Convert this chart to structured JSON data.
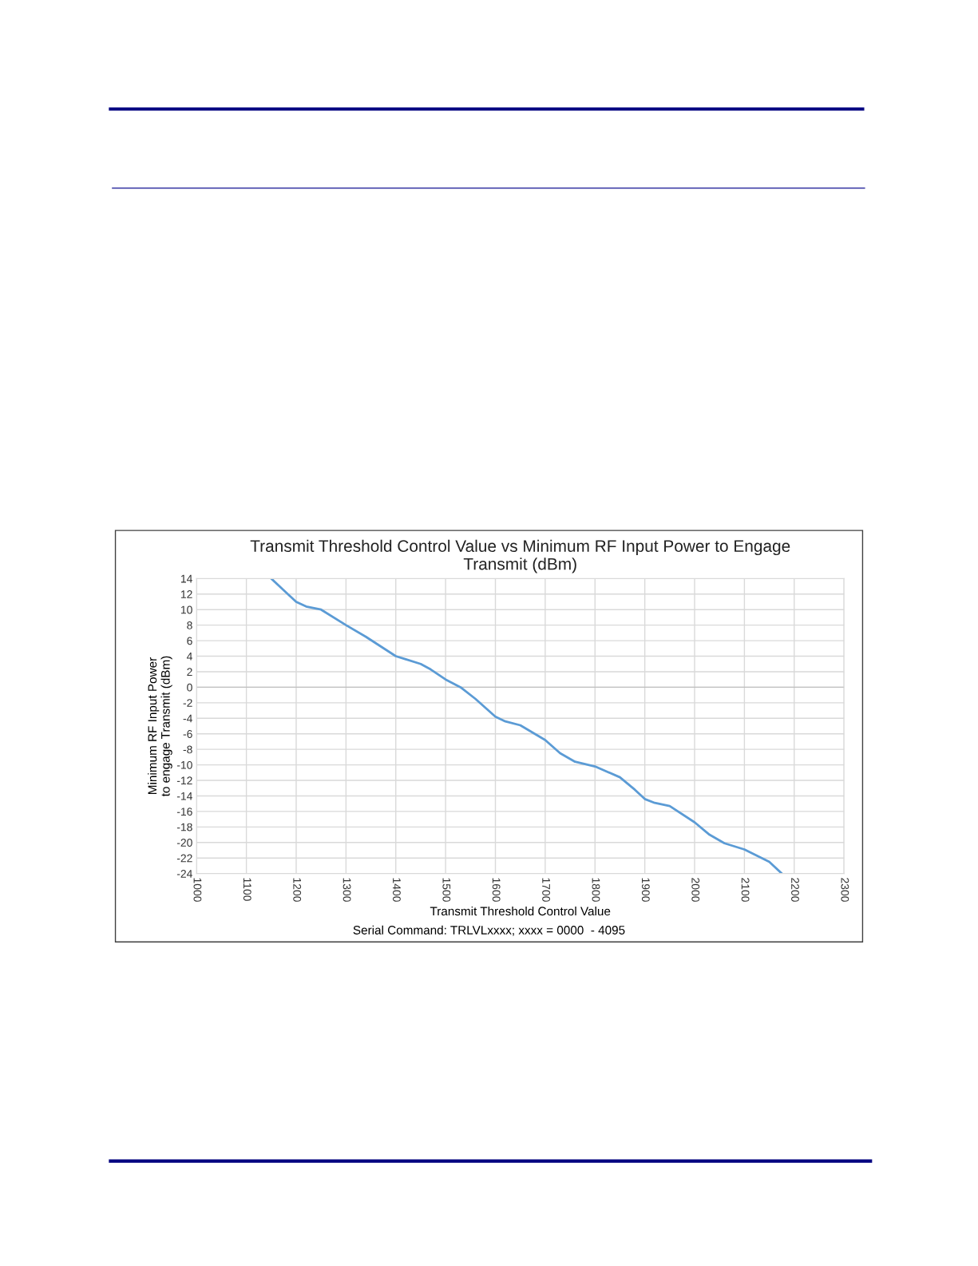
{
  "chart_data": {
    "type": "line",
    "title": "Transmit Threshold Control Value vs Minimum RF Input Power to Engage\nTransmit (dBm)",
    "xlabel": "Transmit Threshold Control Value",
    "ylabel": "Minimum RF Input Power\nto engage Transmit (dBm)",
    "annotations": [
      "Serial Command: TRLVLxxxx; xxxx = 0000  - 4095"
    ],
    "series": [
      {
        "color": "#5b9bd5",
        "x": [
          1150,
          1175,
          1200,
          1220,
          1250,
          1300,
          1340,
          1400,
          1420,
          1450,
          1470,
          1500,
          1530,
          1560,
          1600,
          1620,
          1650,
          1700,
          1730,
          1760,
          1800,
          1850,
          1880,
          1900,
          1920,
          1950,
          2000,
          2030,
          2060,
          2100,
          2150,
          2175
        ],
        "values": [
          14,
          12.5,
          11,
          10.4,
          10,
          8,
          6.5,
          4,
          3.6,
          3,
          2.3,
          1,
          0,
          -1.5,
          -3.8,
          -4.4,
          -4.9,
          -6.8,
          -8.5,
          -9.6,
          -10.2,
          -11.6,
          -13.2,
          -14.4,
          -14.9,
          -15.3,
          -17.4,
          -19,
          -20.1,
          -20.9,
          -22.5,
          -24
        ]
      }
    ],
    "xlim": [
      1000,
      2300
    ],
    "xticks": [
      1000,
      1100,
      1200,
      1300,
      1400,
      1500,
      1600,
      1700,
      1800,
      1900,
      2000,
      2100,
      2200,
      2300
    ],
    "ylim": [
      -24,
      14
    ],
    "yticks": [
      -24,
      -22,
      -20,
      -18,
      -16,
      -14,
      -12,
      -10,
      -8,
      -6,
      -4,
      -2,
      0,
      2,
      4,
      6,
      8,
      10,
      12,
      14
    ],
    "grid": true,
    "legend": false,
    "marker": "none",
    "line_style": "solid"
  }
}
